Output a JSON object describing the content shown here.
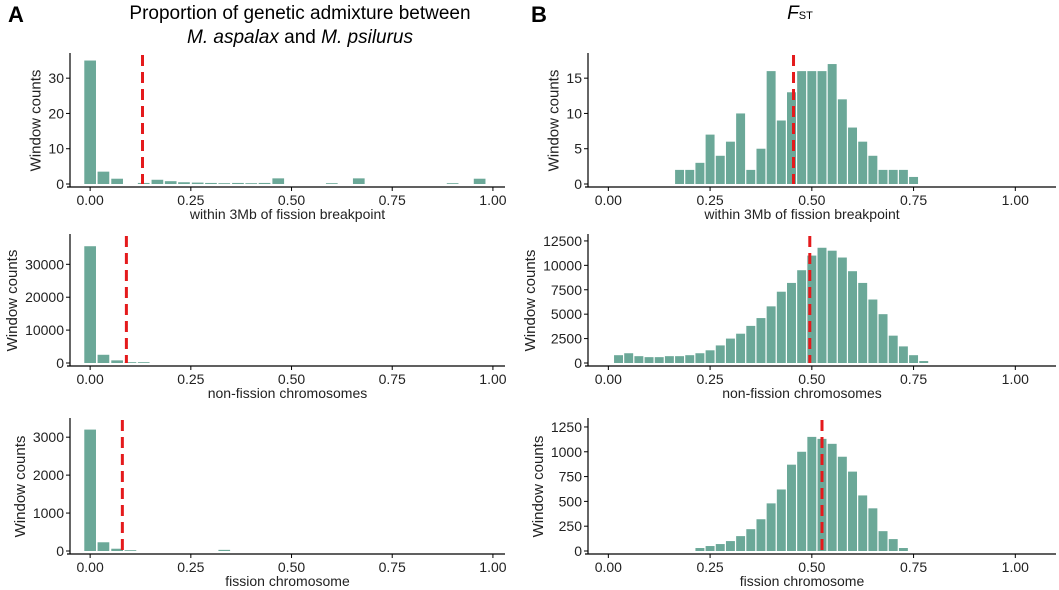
{
  "panels": {
    "A": {
      "letter": "A",
      "title_line1": "Proportion of genetic admixture between",
      "title_species1": "M. aspalax",
      "title_and": "and",
      "title_species2": "M. psilurus"
    },
    "B": {
      "letter": "B",
      "title_main": "F",
      "title_sub": "ST"
    }
  },
  "style": {
    "bar_color": "#6ba898",
    "mean_line_color": "#e41a1c"
  },
  "chart_data": [
    {
      "id": "A1",
      "type": "bar",
      "xlabel": "within  3Mb of fission breakpoint",
      "ylabel": "Window counts",
      "xlim": [
        -0.05,
        1.03
      ],
      "ylim": [
        0,
        36
      ],
      "xticks": [
        0,
        0.25,
        0.5,
        0.75,
        1.0
      ],
      "xticklabels": [
        "0.00",
        "0.25",
        "0.50",
        "0.75",
        "1.00"
      ],
      "yticks": [
        0,
        10,
        20,
        30
      ],
      "yticklabels": [
        "0",
        "10",
        "20",
        "30"
      ],
      "bin_width": 0.033,
      "x": [
        0.0,
        0.033,
        0.067,
        0.1,
        0.133,
        0.167,
        0.2,
        0.233,
        0.267,
        0.3,
        0.333,
        0.367,
        0.4,
        0.433,
        0.467,
        0.5,
        0.533,
        0.567,
        0.6,
        0.633,
        0.667,
        0.7,
        0.733,
        0.767,
        0.8,
        0.833,
        0.867,
        0.9,
        0.933,
        0.967
      ],
      "values": [
        35,
        3.5,
        1.5,
        0,
        0.3,
        1.2,
        0.8,
        0.5,
        0.4,
        0.3,
        0.2,
        0.3,
        0.2,
        0.3,
        1.6,
        0,
        0,
        0,
        0.2,
        0,
        1.6,
        0,
        0,
        0,
        0,
        0,
        0,
        0.2,
        0,
        1.5
      ],
      "mean_line": 0.13
    },
    {
      "id": "A2",
      "type": "bar",
      "xlabel": "non-fission chromosomes",
      "ylabel": "Window counts",
      "xlim": [
        -0.05,
        1.03
      ],
      "ylim": [
        0,
        38000
      ],
      "xticks": [
        0,
        0.25,
        0.5,
        0.75,
        1.0
      ],
      "xticklabels": [
        "0.00",
        "0.25",
        "0.50",
        "0.75",
        "1.00"
      ],
      "yticks": [
        0,
        10000,
        20000,
        30000
      ],
      "yticklabels": [
        "0",
        "10000",
        "20000",
        "30000"
      ],
      "bin_width": 0.033,
      "x": [
        0.0,
        0.033,
        0.067,
        0.1,
        0.133
      ],
      "values": [
        35500,
        2500,
        800,
        250,
        80
      ],
      "mean_line": 0.09
    },
    {
      "id": "A3",
      "type": "bar",
      "xlabel": "fission chromosome",
      "ylabel": "Window counts",
      "xlim": [
        -0.05,
        1.03
      ],
      "ylim": [
        0,
        3400
      ],
      "xticks": [
        0,
        0.25,
        0.5,
        0.75,
        1.0
      ],
      "xticklabels": [
        "0.00",
        "0.25",
        "0.50",
        "0.75",
        "1.00"
      ],
      "yticks": [
        0,
        1000,
        2000,
        3000
      ],
      "yticklabels": [
        "0",
        "1000",
        "2000",
        "3000"
      ],
      "bin_width": 0.033,
      "x": [
        0.0,
        0.033,
        0.067,
        0.1,
        0.333
      ],
      "values": [
        3200,
        230,
        60,
        20,
        30
      ],
      "mean_line": 0.08
    },
    {
      "id": "B1",
      "type": "bar",
      "xlabel": "within  3Mb of fission breakpoint",
      "ylabel": "Window counts",
      "xlim": [
        -0.05,
        1.1
      ],
      "ylim": [
        0,
        18
      ],
      "xticks": [
        0,
        0.25,
        0.5,
        0.75,
        1.0
      ],
      "xticklabels": [
        "0.00",
        "0.25",
        "0.50",
        "0.75",
        "1.00"
      ],
      "yticks": [
        0,
        5,
        10,
        15
      ],
      "yticklabels": [
        "0",
        "5",
        "10",
        "15"
      ],
      "bin_width": 0.025,
      "x": [
        0.175,
        0.2,
        0.225,
        0.25,
        0.275,
        0.3,
        0.325,
        0.35,
        0.375,
        0.4,
        0.425,
        0.45,
        0.475,
        0.5,
        0.525,
        0.55,
        0.575,
        0.6,
        0.625,
        0.65,
        0.675,
        0.7,
        0.725,
        0.75
      ],
      "values": [
        2,
        2,
        3,
        7,
        4,
        6,
        10,
        2,
        5,
        16,
        9,
        13,
        16,
        16,
        16,
        17,
        12,
        8,
        6,
        4,
        2,
        2,
        2,
        1
      ],
      "mean_line": 0.455
    },
    {
      "id": "B2",
      "type": "bar",
      "xlabel": "non-fission chromosomes",
      "ylabel": "Window counts",
      "xlim": [
        -0.05,
        1.1
      ],
      "ylim": [
        0,
        12800
      ],
      "xticks": [
        0,
        0.25,
        0.5,
        0.75,
        1.0
      ],
      "xticklabels": [
        "0.00",
        "0.25",
        "0.50",
        "0.75",
        "1.00"
      ],
      "yticks": [
        0,
        2500,
        5000,
        7500,
        10000,
        12500
      ],
      "yticklabels": [
        "0",
        "2500",
        "5000",
        "7500",
        "10000",
        "12500"
      ],
      "bin_width": 0.025,
      "x": [
        0.025,
        0.05,
        0.075,
        0.1,
        0.125,
        0.15,
        0.175,
        0.2,
        0.225,
        0.25,
        0.275,
        0.3,
        0.325,
        0.35,
        0.375,
        0.4,
        0.425,
        0.45,
        0.475,
        0.5,
        0.525,
        0.55,
        0.575,
        0.6,
        0.625,
        0.65,
        0.675,
        0.7,
        0.725,
        0.75,
        0.775
      ],
      "values": [
        800,
        1000,
        700,
        600,
        600,
        700,
        700,
        800,
        1000,
        1300,
        1800,
        2500,
        3000,
        3800,
        4600,
        5800,
        7300,
        8200,
        9500,
        11000,
        11800,
        11500,
        10800,
        9400,
        8200,
        6500,
        5000,
        2800,
        1700,
        800,
        200
      ],
      "mean_line": 0.495
    },
    {
      "id": "B3",
      "type": "bar",
      "xlabel": "fission chromosome",
      "ylabel": "Window counts",
      "xlim": [
        -0.05,
        1.1
      ],
      "ylim": [
        0,
        1300
      ],
      "xticks": [
        0,
        0.25,
        0.5,
        0.75,
        1.0
      ],
      "xticklabels": [
        "0.00",
        "0.25",
        "0.50",
        "0.75",
        "1.00"
      ],
      "yticks": [
        0,
        250,
        500,
        750,
        1000,
        1250
      ],
      "yticklabels": [
        "0",
        "250",
        "500",
        "750",
        "1000",
        "1250"
      ],
      "bin_width": 0.025,
      "x": [
        0.225,
        0.25,
        0.275,
        0.3,
        0.325,
        0.35,
        0.375,
        0.4,
        0.425,
        0.45,
        0.475,
        0.5,
        0.525,
        0.55,
        0.575,
        0.6,
        0.625,
        0.65,
        0.675,
        0.7,
        0.725
      ],
      "values": [
        30,
        50,
        70,
        100,
        150,
        220,
        320,
        480,
        620,
        870,
        1000,
        1150,
        1130,
        1080,
        950,
        800,
        560,
        430,
        200,
        120,
        30
      ],
      "mean_line": 0.525
    }
  ]
}
